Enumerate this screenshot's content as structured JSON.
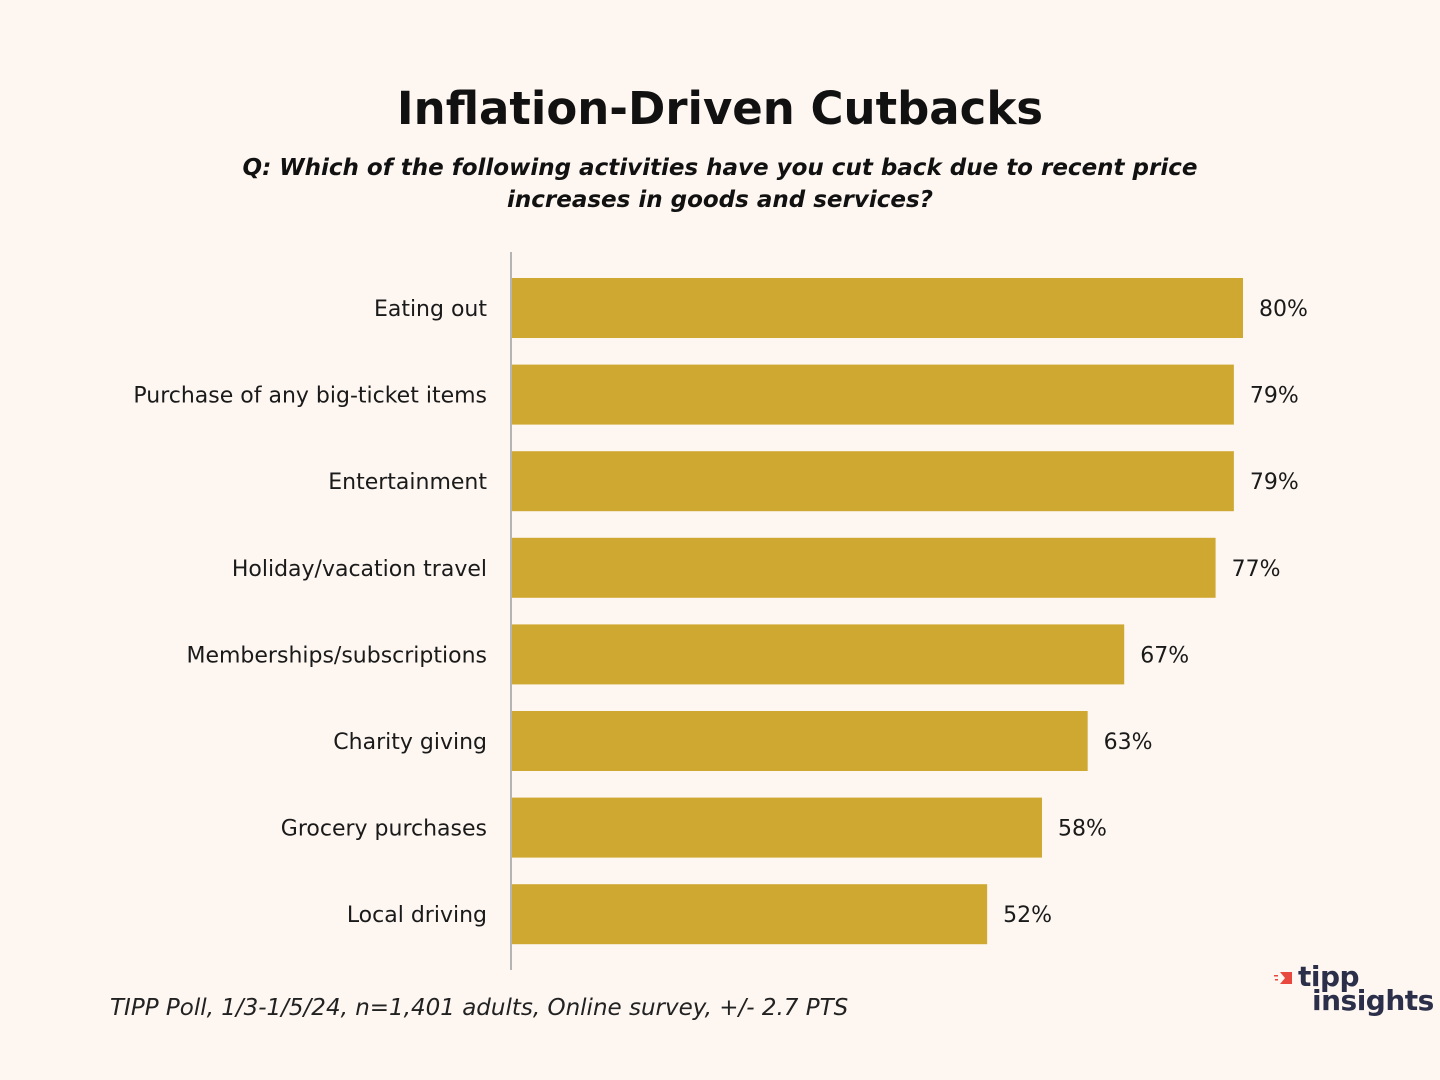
{
  "chart_data": {
    "type": "bar",
    "orientation": "horizontal",
    "title": "Inflation-Driven Cutbacks",
    "subtitle": "Q: Which of the following activities have you cut back due to recent price increases in goods and services?",
    "categories": [
      "Eating out",
      "Purchase of any big-ticket items",
      "Entertainment",
      "Holiday/vacation travel",
      "Memberships/subscriptions",
      "Charity giving",
      "Grocery purchases",
      "Local driving"
    ],
    "values": [
      80,
      79,
      79,
      77,
      67,
      63,
      58,
      52
    ],
    "value_labels": [
      "80%",
      "79%",
      "79%",
      "77%",
      "67%",
      "63%",
      "58%",
      "52%"
    ],
    "xlim": [
      0,
      80
    ],
    "bar_color": "#cfa832",
    "xlabel": "",
    "ylabel": ""
  },
  "footer": {
    "source": "TIPP Poll, 1/3-1/5/24, n=1,401 adults, Online survey, +/- 2.7 PTS"
  },
  "logo": {
    "line1": "tipp",
    "line2": "insights",
    "mark_color": "#e8483d",
    "text_color": "#2b2f4a"
  }
}
